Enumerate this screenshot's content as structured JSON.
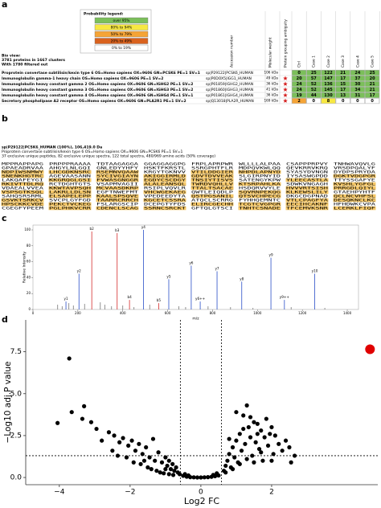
{
  "panel_labels": [
    "a",
    "b",
    "c",
    "d"
  ],
  "table": {
    "legend_title": "Probability legend:",
    "legend": [
      {
        "label": "over 95%",
        "color": "#7bbf5a"
      },
      {
        "label": "80% to 94%",
        "color": "#f7e842"
      },
      {
        "label": "50% to 79%",
        "color": "#f5a436"
      },
      {
        "label": "20% to 49%",
        "color": "#d9621e"
      },
      {
        "label": "0% to 19%",
        "color": "#ffffff"
      }
    ],
    "bio_view": [
      "Bio view:",
      "3781 proteins in 1667 clusters",
      "With 1780 filtered out"
    ],
    "headers": [
      "Accession number",
      "Molecular weight",
      "Protein grouping ambiguity",
      "Ctrl",
      "Case 1",
      "Case 2",
      "Case 3",
      "Case 4",
      "Case 5"
    ],
    "rows": [
      {
        "description": "Proprotein convertase subtilisin/kexin type 6 OS=Homo sapiens OX=9606 GN=PCSK6 PE=1 SV=1",
        "accession": "sp|P29122|PCSK6_HUMAN",
        "weight": "106 kDa",
        "ambiguity": false,
        "values": [
          0,
          25,
          122,
          21,
          24,
          25
        ],
        "colors": [
          "#7bbf5a",
          "#7bbf5a",
          "#7bbf5a",
          "#7bbf5a",
          "#7bbf5a",
          "#7bbf5a"
        ]
      },
      {
        "description": "Immunoglobulin gamma-1 heavy chain OS=Homo sapiens OX=9606 PE=1 SV=2",
        "accession": "sp|P0DOX5|IGG1_HUMAN",
        "weight": "49 kDa",
        "ambiguity": true,
        "values": [
          20,
          57,
          147,
          17,
          37,
          20
        ],
        "colors": [
          "#7bbf5a",
          "#7bbf5a",
          "#7bbf5a",
          "#7bbf5a",
          "#7bbf5a",
          "#7bbf5a"
        ]
      },
      {
        "description": "Immunoglobulin heavy constant gamma 2 OS=Homo sapiens OX=9606 GN=IGHG2 PE=1 SV=2",
        "accession": "sp|P01859|IGHG2_HUMAN",
        "weight": "36 kDa",
        "ambiguity": true,
        "values": [
          24,
          52,
          136,
          15,
          30,
          21
        ],
        "colors": [
          "#7bbf5a",
          "#7bbf5a",
          "#7bbf5a",
          "#7bbf5a",
          "#7bbf5a",
          "#7bbf5a"
        ]
      },
      {
        "description": "Immunoglobulin heavy constant gamma 3 OS=Homo sapiens OX=9606 GN=IGHG3 PE=1 SV=2",
        "accession": "sp|P01860|IGHG3_HUMAN",
        "weight": "41 kDa",
        "ambiguity": true,
        "values": [
          24,
          52,
          145,
          17,
          34,
          21
        ],
        "colors": [
          "#7bbf5a",
          "#7bbf5a",
          "#7bbf5a",
          "#7bbf5a",
          "#7bbf5a",
          "#7bbf5a"
        ]
      },
      {
        "description": "Immunoglobulin heavy constant gamma 4 OS=Homo sapiens OX=9606 GN=IGHG4 PE=1 SV=1",
        "accession": "sp|P01861|IGHG4_HUMAN",
        "weight": "36 kDa",
        "ambiguity": true,
        "values": [
          19,
          44,
          130,
          13,
          31,
          17
        ],
        "colors": [
          "#7bbf5a",
          "#7bbf5a",
          "#7bbf5a",
          "#7bbf5a",
          "#7bbf5a",
          "#7bbf5a"
        ]
      },
      {
        "description": "Secretory phospholipase A2 receptor OS=Homo sapiens OX=9606 GN=PLA2R1 PE=1 SV=2",
        "accession": "sp|Q13018|PLA2R_HUMAN",
        "weight": "169 kDa",
        "ambiguity": true,
        "values": [
          2,
          0,
          8,
          0,
          0,
          0
        ],
        "colors": [
          "#f5a436",
          "#ffffff",
          "#f7e842",
          "#ffffff",
          "#ffffff",
          "#ffffff"
        ]
      }
    ]
  },
  "sequence": {
    "header": [
      "sp|P29122|PCSK6_HUMAN (100%), 106,419.0 Da",
      "Proprotein convertase subtilisin/kexin type 6 OS=Homo sapiens OX=9606 GN=PCSK6 PE=1 SV=1",
      "37 exclusive unique peptides, 82 exclusive unique spectra, 122 total spectra, 480/969 amino acids (50% coverage)"
    ],
    "highlight_color": "#f6c868",
    "lines": [
      [
        "MPPRAPPAPG",
        "PRPPPRAAAA",
        "TDTAAGAGGA",
        "GGAGGAGGPG",
        "FRPLAPRPWR",
        "WLLLLALPAA",
        "CSAPPPRPVY",
        "TNHWAVQVLG"
      ],
      [
        "GPAEADRVAA",
        "AHGYLNLGQI",
        "GNLEDYYHFY",
        "HSKTFKRSTL",
        "SSRGPHTFLR",
        "MDPQVKWLQQ",
        "QEVKRRVKRQ",
        "VRSDPQALYF"
      ],
      [
        "NDPIWSNMWY",
        "LHCGDKNSRC",
        "RSEMNVQAAW",
        "KRGYTGKNVV",
        "VTILDDGIER",
        "NHPDLAPNYD",
        "SYASYDVNGN",
        "DYDPSPRYDA"
      ],
      [
        "SNENKHGTRC",
        "AGEVAASANN",
        "SYCIVGIAYN",
        "AKIGGIRMLD",
        "GDVTDVVEAK",
        "SLGIRPNYID",
        "IYSASWGPDD",
        "DGKTVDGPGR"
      ],
      [
        "LAKQAFEYGI",
        "KKGRQGLGSI",
        "FVWASGNGGR",
        "EGDYCSCDGY",
        "TNSIYTISVS",
        "SATENGYKPW",
        "YLEECASTLA",
        "TTYSSGAFYE"
      ],
      [
        "RKIVTTDLRQ",
        "RCTDGHTGTS",
        "VSAPMVAGII",
        "ALALEANSQL",
        "TWRDVQHLLV",
        "KTSRPAHLKA",
        "SDWKVNGAGH",
        "KVSHLYGFGL"
      ],
      [
        "VDAEALVVEA",
        "KKWTAVPSQH",
        "MCVAASDKRP",
        "RSIPLVQVLR",
        "TTALTSACAE",
        "HSDQRVVYLE",
        "HVVVRTSISH",
        "PRRGDLQIYL"
      ],
      [
        "VSPSGTKSQL",
        "LAKRLLDLSN",
        "EGFTNWEFMT",
        "VHCWGEKAEG",
        "QWTLEIQDLP",
        "SQVRNPEKQG",
        "KLKEWSLILY",
        "GTAEHPYHTF"
      ],
      [
        "SAHQSRSRML",
        "ELSAPELEPP",
        "KAALSPSQVE",
        "VPEDEEDYTA",
        "QSTPGSANIL",
        "QTSVCHPECG",
        "DKGCDGPNAD",
        "QCLNCVHFSL"
      ],
      [
        "GSVKTSRKCV",
        "SVCPLGYFGD",
        "TAARRCRRCH",
        "KGCETCSSRA",
        "ATQCLSCRRG",
        "FYHHQEMNTC",
        "VTLCPAGFYA",
        "DESQKNCLKC"
      ],
      [
        "HPSCKKCVDE",
        "PEKCTVCKEG",
        "FSLARGSCIP",
        "DCEPGTYFDS",
        "ELIRCGECHH",
        "TCGTCVGPGR",
        "EECIHCAKNF",
        "HFHDWKCVPA"
      ],
      [
        "CGEGFYPEEM",
        "PGLPHKVCRR",
        "CDENCLSCAG",
        "SSRNCSRCKT",
        "GFTQLGTSCI",
        "TNHTCSNADE",
        "TFCEMVKSNR",
        "LCERKLFIQF"
      ]
    ],
    "coverage": [
      [
        false,
        false,
        false,
        false,
        false,
        false,
        false,
        false
      ],
      [
        false,
        false,
        false,
        false,
        false,
        false,
        false,
        false
      ],
      [
        true,
        true,
        true,
        false,
        true,
        true,
        false,
        false
      ],
      [
        true,
        false,
        true,
        true,
        true,
        false,
        false,
        true
      ],
      [
        false,
        true,
        true,
        true,
        true,
        false,
        true,
        false
      ],
      [
        true,
        false,
        false,
        true,
        true,
        true,
        false,
        true
      ],
      [
        false,
        true,
        true,
        false,
        true,
        false,
        true,
        true
      ],
      [
        true,
        true,
        false,
        true,
        false,
        true,
        true,
        false
      ],
      [
        false,
        true,
        true,
        false,
        true,
        true,
        false,
        true
      ],
      [
        true,
        false,
        true,
        true,
        false,
        false,
        true,
        true
      ],
      [
        true,
        true,
        false,
        false,
        true,
        true,
        true,
        false
      ],
      [
        false,
        true,
        true,
        true,
        false,
        true,
        true,
        true
      ]
    ]
  },
  "chart_data": [
    {
      "type": "spectrum",
      "x_label": "m/z",
      "y_label": "Relative Intensity",
      "xlim": [
        0,
        1450
      ],
      "xticks": [
        0,
        200,
        400,
        600,
        800,
        1000,
        1200,
        1400
      ],
      "ylim": [
        0,
        100
      ],
      "yticks": [
        0,
        20,
        40,
        60,
        80,
        100
      ],
      "peaks": {
        "x": [
          147,
          205,
          262,
          375,
          430,
          492,
          560,
          605,
          705,
          745,
          820,
          930,
          1060,
          1120,
          1255,
          110,
          130,
          160,
          180,
          230,
          300,
          320,
          350,
          400,
          450,
          520,
          650,
          680,
          780,
          880,
          980,
          1150,
          1300
        ],
        "values": [
          10,
          45,
          98,
          96,
          12,
          100,
          8,
          38,
          55,
          10,
          48,
          35,
          65,
          12,
          45,
          6,
          4,
          8,
          5,
          7,
          9,
          6,
          4,
          5,
          3,
          6,
          4,
          3,
          4,
          3,
          2,
          3,
          2
        ],
        "labels": [
          "y1",
          "y2",
          "b2",
          "b3",
          "b4",
          "y4",
          "b5",
          "y5",
          "y6",
          "y6++",
          "y7",
          "y8",
          "y9",
          "y9++",
          "y10",
          null,
          null,
          null,
          null,
          null,
          null,
          null,
          null,
          null,
          null,
          null,
          null,
          null,
          null,
          null,
          null,
          null,
          null
        ],
        "colors": [
          "#2a4fc8",
          "#2a4fc8",
          "#d42a2a",
          "#d42a2a",
          "#d42a2a",
          "#2a4fc8",
          "#d42a2a",
          "#2a4fc8",
          "#2a4fc8",
          "#2a4fc8",
          "#2a4fc8",
          "#2a4fc8",
          "#2a4fc8",
          "#2a4fc8",
          "#2a4fc8",
          "#777777",
          "#777777",
          "#777777",
          "#777777",
          "#777777",
          "#777777",
          "#777777",
          "#777777",
          "#777777",
          "#777777",
          "#777777",
          "#777777",
          "#777777",
          "#777777",
          "#777777",
          "#777777",
          "#777777",
          "#777777"
        ]
      }
    },
    {
      "type": "scatter",
      "x_label": "Log2 FC",
      "y_label": "−Log10 adj.P value",
      "xlim": [
        -4.95,
        5.0
      ],
      "ylim": [
        -0.43,
        9.4
      ],
      "xticks": [
        {
          "value": -4,
          "label": "−4"
        },
        {
          "value": -2,
          "label": "−2"
        },
        0,
        2
      ],
      "yticks": [
        {
          "value": 0,
          "label": "0.0"
        },
        2.5,
        {
          "value": 5,
          "label": "5.0"
        },
        7.5
      ],
      "vlines": [
        -0.58,
        0.58
      ],
      "hline": 1.3,
      "series": [
        {
          "color": "#000000",
          "x": [
            -3.72,
            -4.05,
            -3.65,
            -3.3,
            -3.35,
            -3.1,
            -2.95,
            -2.8,
            -2.6,
            -2.45,
            -2.3,
            -2.2,
            -2.05,
            -1.95,
            -1.85,
            -1.75,
            -1.65,
            -1.55,
            -1.45,
            -1.35,
            -1.3,
            -1.2,
            -1.1,
            -1.0,
            -0.95,
            -0.9,
            -0.85,
            -0.8,
            -0.75,
            -0.7,
            -0.65,
            -0.6,
            -2.1,
            -1.9,
            -1.7,
            -1.5,
            -1.4,
            -1.25,
            -1.15,
            -1.05,
            -0.9,
            -2.5,
            -2.35,
            -1.6,
            -1.0,
            -0.78,
            -0.5,
            -0.4,
            -0.3,
            -0.2,
            -0.1,
            0.0,
            0.1,
            0.2,
            0.3,
            0.4,
            0.5,
            -0.45,
            0.45,
            -0.35,
            0.35,
            0.65,
            0.7,
            0.75,
            0.8,
            0.85,
            0.9,
            0.95,
            1.0,
            1.0,
            1.05,
            1.1,
            1.15,
            1.2,
            1.25,
            1.3,
            1.35,
            1.4,
            1.45,
            1.5,
            1.55,
            1.6,
            1.65,
            1.7,
            1.75,
            1.8,
            1.85,
            1.9,
            1.95,
            2.0,
            2.05,
            2.1,
            2.2,
            2.3,
            2.4,
            2.5,
            2.55,
            2.65,
            0.7,
            0.9,
            1.1,
            1.3,
            1.5,
            1.7,
            2.0,
            1.2,
            0.8,
            1.4,
            1.6
          ],
          "values": [
            7.1,
            3.25,
            3.9,
            4.25,
            3.5,
            3.3,
            2.9,
            2.2,
            2.7,
            2.5,
            2.1,
            2.35,
            1.9,
            2.2,
            1.6,
            2.0,
            1.4,
            1.8,
            1.2,
            2.3,
            1.0,
            1.5,
            0.9,
            1.2,
            0.7,
            1.0,
            0.5,
            0.8,
            0.4,
            0.6,
            0.3,
            0.2,
            1.2,
            0.9,
            0.8,
            0.6,
            0.5,
            0.4,
            0.3,
            0.25,
            0.2,
            1.6,
            1.3,
            1.0,
            0.5,
            0.15,
            0.1,
            0.05,
            0.02,
            0.01,
            0.0,
            0.0,
            0.01,
            0.02,
            0.04,
            0.08,
            0.12,
            0.2,
            0.25,
            0.12,
            0.15,
            0.4,
            0.7,
            1.0,
            1.4,
            0.6,
            1.8,
            1.2,
            2.2,
            3.9,
            0.9,
            2.6,
            1.6,
            3.7,
            2.0,
            4.3,
            3.0,
            2.4,
            1.3,
            3.3,
            2.1,
            3.2,
            1.7,
            2.8,
            1.0,
            2.4,
            3.5,
            1.9,
            2.6,
            3.0,
            1.4,
            2.5,
            2.0,
            1.6,
            2.2,
            1.8,
            0.9,
            1.3,
            0.3,
            0.5,
            0.8,
            1.1,
            0.9,
            1.5,
            1.0,
            2.9,
            2.3,
            3.6,
            2.6
          ]
        },
        {
          "color": "#e00000",
          "x": [
            4.78
          ],
          "values": [
            7.65
          ]
        }
      ]
    }
  ]
}
